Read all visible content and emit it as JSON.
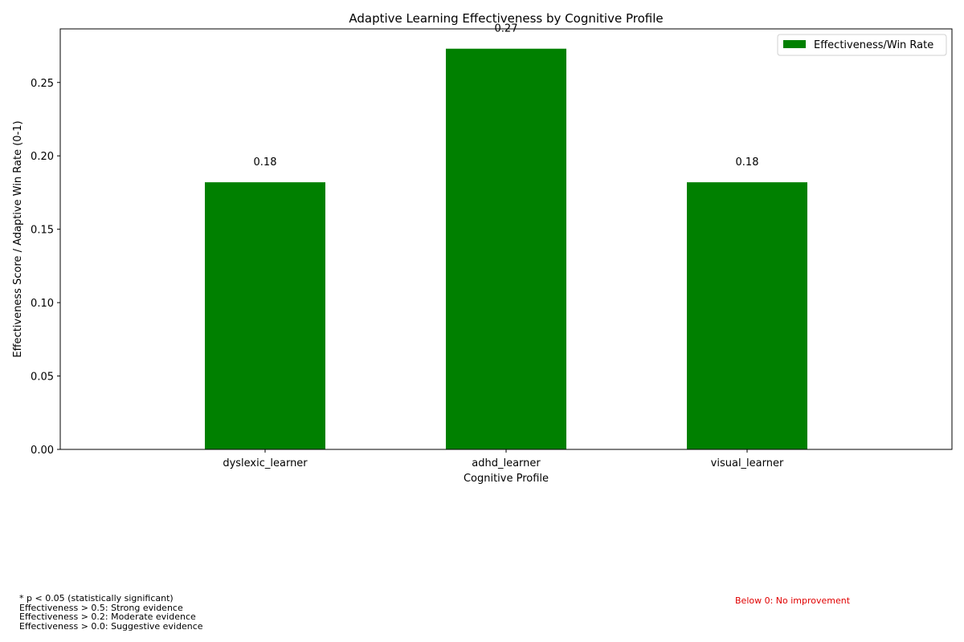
{
  "chart_data": {
    "type": "bar",
    "title": "Adaptive Learning Effectiveness by Cognitive Profile",
    "xlabel": "Cognitive Profile",
    "ylabel": "Effectiveness Score / Adaptive Win Rate (0-1)",
    "categories": [
      "dyslexic_learner",
      "adhd_learner",
      "visual_learner"
    ],
    "series": [
      {
        "name": "Effectiveness/Win Rate",
        "values": [
          0.182,
          0.273,
          0.182
        ],
        "color": "#008000"
      }
    ],
    "data_labels": [
      "0.18",
      "0.27",
      "0.18"
    ],
    "ylim": [
      0,
      0.2865
    ],
    "yticks": [
      0.0,
      0.05,
      0.1,
      0.15,
      0.2,
      0.25
    ],
    "ytick_labels": [
      "0.00",
      "0.05",
      "0.10",
      "0.15",
      "0.20",
      "0.25"
    ],
    "reference_line": {
      "value": 0,
      "color": "#e07070"
    },
    "grid": false,
    "legend_position": "top-right"
  },
  "notes": {
    "lines": [
      "* p < 0.05 (statistically significant)",
      "Effectiveness > 0.5: Strong evidence",
      "Effectiveness > 0.2: Moderate evidence",
      "Effectiveness > 0.0: Suggestive evidence"
    ],
    "negative_note": "Below 0: No improvement",
    "negative_note_color": "#e00000"
  }
}
